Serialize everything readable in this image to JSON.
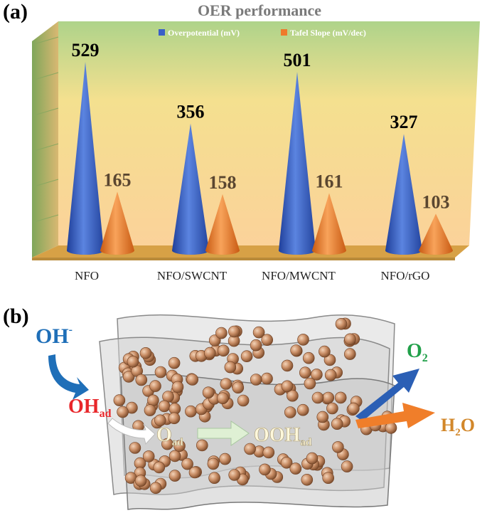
{
  "panel_a_label": "(a)",
  "panel_b_label": "(b)",
  "chart_data": {
    "type": "bar",
    "title": "OER performance",
    "categories": [
      "NFO",
      "NFO/SWCNT",
      "NFO/MWCNT",
      "NFO/rGO"
    ],
    "series": [
      {
        "name": "Overpotential (mV)",
        "values": [
          529,
          356,
          501,
          327
        ],
        "color": "#3a5fc8"
      },
      {
        "name": "Tafel  Slope (mV/dec)",
        "values": [
          165,
          158,
          161,
          103
        ],
        "color": "#ef7a2a"
      }
    ],
    "ylim": [
      0,
      600
    ],
    "grid": false,
    "legend": "top",
    "shape": "cone"
  },
  "scheme": {
    "oh_minus": "OH",
    "oh_minus_sup": "-",
    "oh_ad": "OH",
    "oh_ad_sub": "ad",
    "o_ad": "O",
    "o_ad_sub": "ad",
    "ooh_ad": "OOH",
    "ooh_ad_sub": "ad",
    "o2": "O",
    "o2_sub": "2",
    "h2o_h": "H",
    "h2o_sub": "2",
    "h2o_o": "O",
    "colors": {
      "oh_minus": "#1f6fb8",
      "oh_ad": "#e8262a",
      "o2": "#21a04a",
      "h2o": "#d2872a",
      "intermediate": "#fff8dc"
    }
  }
}
